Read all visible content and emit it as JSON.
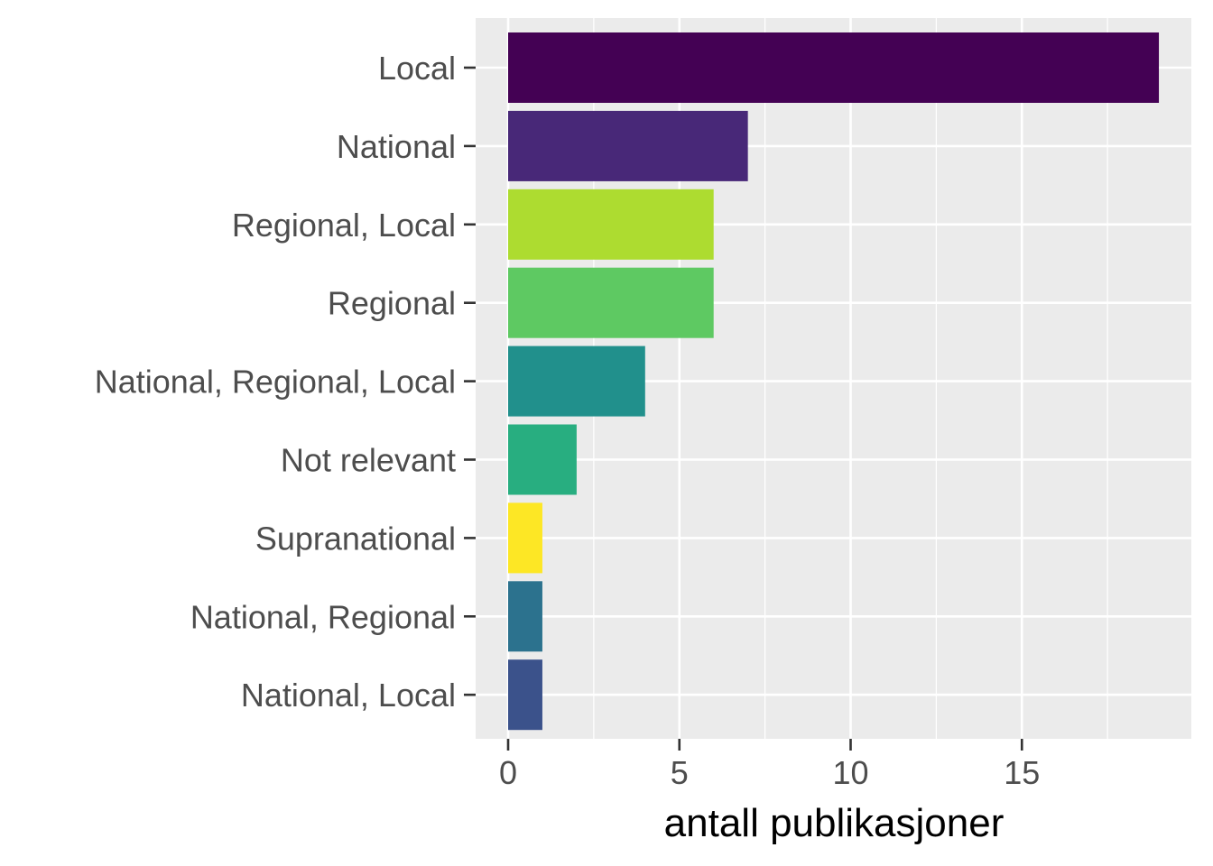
{
  "chart_data": {
    "type": "bar",
    "orientation": "horizontal",
    "categories": [
      "Local",
      "National",
      "Regional, Local",
      "Regional",
      "National, Regional, Local",
      "Not relevant",
      "Supranational",
      "National, Regional",
      "National, Local"
    ],
    "values": [
      19,
      7,
      6,
      6,
      4,
      2,
      1,
      1,
      1
    ],
    "bar_colors": [
      "#440154",
      "#482878",
      "#ADDC30",
      "#5EC962",
      "#21908C",
      "#28AE80",
      "#FDE725",
      "#2C728E",
      "#3B528B"
    ],
    "xlabel": "antall publikasjoner",
    "ylabel": "",
    "xlim": [
      -1,
      20
    ],
    "x_ticks": [
      0,
      5,
      10,
      15
    ],
    "x_ticks_labels": [
      "0",
      "5",
      "10",
      "15"
    ],
    "grid": true,
    "panel_background": "#EBEBEB",
    "grid_color": "#FFFFFF"
  }
}
